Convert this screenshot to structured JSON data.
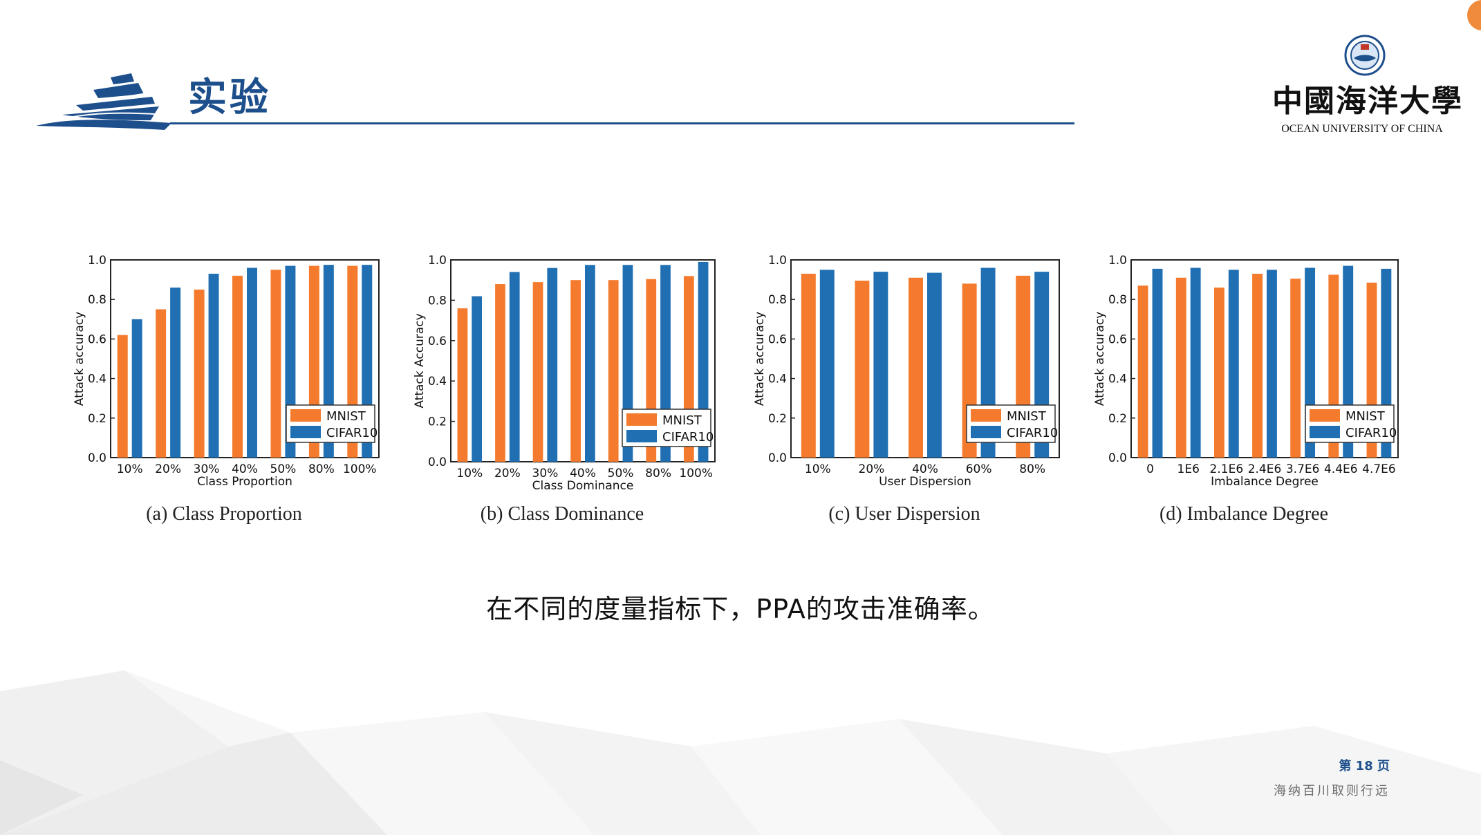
{
  "header": {
    "title": "实验",
    "logo_cn": "中國海洋大學",
    "logo_en": "OCEAN UNIVERSITY OF CHINA"
  },
  "caption": "在不同的度量指标下，PPA的攻击准确率。",
  "footer": {
    "page": "第 18 页",
    "motto": "海纳百川取则行远"
  },
  "colors": {
    "mnist": "#f47b2d",
    "cifar10": "#1f6fb2",
    "accent": "#1d4f8c"
  },
  "chart_data": [
    {
      "type": "bar",
      "subcaption": "(a) Class Proportion",
      "xlabel": "Class Proportion",
      "ylabel": "Attack accuracy",
      "ylim": [
        0,
        1.0
      ],
      "yticks": [
        "0.0",
        "0.2",
        "0.4",
        "0.6",
        "0.8",
        "1.0"
      ],
      "categories": [
        "10%",
        "20%",
        "30%",
        "40%",
        "50%",
        "80%",
        "100%"
      ],
      "series": [
        {
          "name": "MNIST",
          "values": [
            0.62,
            0.75,
            0.85,
            0.92,
            0.95,
            0.97,
            0.97
          ]
        },
        {
          "name": "CIFAR10",
          "values": [
            0.7,
            0.86,
            0.93,
            0.96,
            0.97,
            0.975,
            0.975
          ]
        }
      ],
      "legend": "bottom-right"
    },
    {
      "type": "bar",
      "subcaption": "(b) Class Dominance",
      "xlabel": "Class Dominance",
      "ylabel": "Attack Accuracy",
      "ylim": [
        0,
        1.0
      ],
      "yticks": [
        "0.0",
        "0.2",
        "0.4",
        "0.6",
        "0.8",
        "1.0"
      ],
      "categories": [
        "10%",
        "20%",
        "30%",
        "40%",
        "50%",
        "80%",
        "100%"
      ],
      "series": [
        {
          "name": "MNIST",
          "values": [
            0.76,
            0.88,
            0.89,
            0.9,
            0.9,
            0.905,
            0.92
          ]
        },
        {
          "name": "CIFAR10",
          "values": [
            0.82,
            0.94,
            0.96,
            0.975,
            0.975,
            0.975,
            0.99
          ]
        }
      ],
      "legend": "bottom-right"
    },
    {
      "type": "bar",
      "subcaption": "(c) User Dispersion",
      "xlabel": "User Dispersion",
      "ylabel": "Attack accuracy",
      "ylim": [
        0,
        1.0
      ],
      "yticks": [
        "0.0",
        "0.2",
        "0.4",
        "0.6",
        "0.8",
        "1.0"
      ],
      "categories": [
        "10%",
        "20%",
        "40%",
        "60%",
        "80%"
      ],
      "series": [
        {
          "name": "MNIST",
          "values": [
            0.93,
            0.895,
            0.91,
            0.88,
            0.92
          ]
        },
        {
          "name": "CIFAR10",
          "values": [
            0.95,
            0.94,
            0.935,
            0.96,
            0.94
          ]
        }
      ],
      "legend": "bottom-right"
    },
    {
      "type": "bar",
      "subcaption": "(d) Imbalance Degree",
      "xlabel": "Imbalance Degree",
      "ylabel": "Attack accuracy",
      "ylim": [
        0,
        1.0
      ],
      "yticks": [
        "0.0",
        "0.2",
        "0.4",
        "0.6",
        "0.8",
        "1.0"
      ],
      "categories": [
        "0",
        "1E6",
        "2.1E6",
        "2.4E6",
        "3.7E6",
        "4.4E6",
        "4.7E6"
      ],
      "series": [
        {
          "name": "MNIST",
          "values": [
            0.87,
            0.91,
            0.86,
            0.93,
            0.905,
            0.925,
            0.885
          ]
        },
        {
          "name": "CIFAR10",
          "values": [
            0.955,
            0.96,
            0.95,
            0.95,
            0.96,
            0.97,
            0.955
          ]
        }
      ],
      "legend": "bottom-right"
    }
  ]
}
